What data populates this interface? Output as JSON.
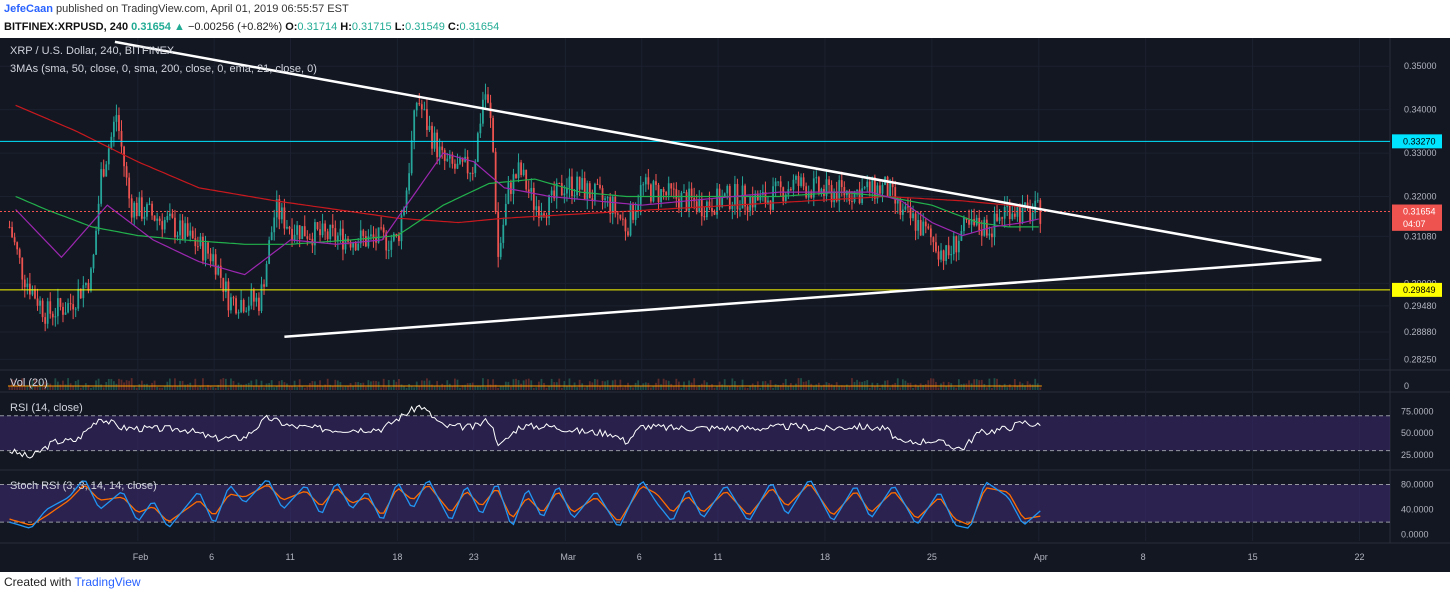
{
  "header": {
    "author": "JefeCaan",
    "published_text": "published on TradingView.com, April 01, 2019 06:55:57 EST",
    "symbol": "BITFINEX:XRPUSD, 240",
    "last": "0.31654",
    "change": "−0.00256 (+0.82%)",
    "o_label": "O:",
    "o_value": "0.31714",
    "h_label": "H:",
    "h_value": "0.31715",
    "l_label": "L:",
    "l_value": "0.31549",
    "c_label": "C:",
    "c_value": "0.31654"
  },
  "footer": {
    "created_with": "Created with",
    "brand": "TradingView"
  },
  "colors": {
    "background": "#131722",
    "grid": "#1c2130",
    "up": "#26a69a",
    "down": "#ef5350",
    "ma50": "#22b14c",
    "ma200": "#c8191e",
    "ema21": "#9c27b0",
    "trendline": "#ffffff",
    "resistance": "#00e5ff",
    "support": "#ffff00",
    "rsi_line": "#ffffff",
    "band": "#3c2a6e",
    "stoch_k": "#2196f3",
    "stoch_d": "#ff6d00"
  },
  "chart_data": {
    "type": "candlestick",
    "title": "XRP / U.S. Dollar, 240, BITFINEX",
    "indicator_label": "3MAs (sma, 50, close, 0, sma, 200, close, 0, ema, 21, close, 0)",
    "price_axis": {
      "ylim": [
        0.2805,
        0.3565
      ],
      "ticks": [
        "0.35000",
        "0.34000",
        "0.33000",
        "0.32000",
        "0.31080",
        "0.30000",
        "0.29480",
        "0.28880",
        "0.28250"
      ],
      "tick_values": [
        0.35,
        0.34,
        0.33,
        0.32,
        0.3108,
        0.3,
        0.2948,
        0.2888,
        0.2825
      ],
      "price_tags": [
        {
          "label": "0.33270",
          "value": 0.3327,
          "style": "resistance"
        },
        {
          "label": "0.31654",
          "value": 0.31654,
          "style": "last"
        },
        {
          "label": "04:07",
          "value": 0.3137,
          "style": "countdown"
        },
        {
          "label": "0.29849",
          "value": 0.29849,
          "style": "support"
        }
      ]
    },
    "x_axis": {
      "labels": [
        "Feb",
        "6",
        "11",
        "18",
        "23",
        "Mar",
        "6",
        "11",
        "18",
        "25",
        "Apr",
        "8",
        "15",
        "22"
      ],
      "label_days": [
        31,
        36,
        41,
        48,
        53,
        59,
        64,
        69,
        76,
        83,
        90,
        97,
        104,
        111
      ],
      "range_days": [
        22.5,
        113
      ],
      "last_day": 90.2
    },
    "horizontal_levels": [
      {
        "value": 0.3327,
        "name": "resistance"
      },
      {
        "value": 0.29849,
        "name": "support"
      },
      {
        "value": 0.31654,
        "name": "last price",
        "dashed": true
      }
    ],
    "trendlines": [
      {
        "from": [
          29.5,
          0.3556
        ],
        "to": [
          108.5,
          0.3054
        ]
      },
      {
        "from": [
          40.6,
          0.2877
        ],
        "to": [
          108.5,
          0.3054
        ]
      }
    ],
    "price_anchors": [
      [
        22.6,
        0.313
      ],
      [
        23.5,
        0.302
      ],
      [
        25,
        0.293
      ],
      [
        26.5,
        0.295
      ],
      [
        28,
        0.302
      ],
      [
        28.6,
        0.325
      ],
      [
        29.3,
        0.334
      ],
      [
        29.6,
        0.339
      ],
      [
        30.5,
        0.318
      ],
      [
        33,
        0.314
      ],
      [
        34.5,
        0.31
      ],
      [
        36,
        0.306
      ],
      [
        37,
        0.296
      ],
      [
        39,
        0.296
      ],
      [
        40,
        0.317
      ],
      [
        41,
        0.313
      ],
      [
        43,
        0.311
      ],
      [
        46,
        0.31
      ],
      [
        48,
        0.31
      ],
      [
        48.6,
        0.322
      ],
      [
        49.3,
        0.343
      ],
      [
        50,
        0.336
      ],
      [
        51,
        0.328
      ],
      [
        52,
        0.326
      ],
      [
        53,
        0.327
      ],
      [
        53.7,
        0.345
      ],
      [
        54.2,
        0.335
      ],
      [
        54.6,
        0.306
      ],
      [
        55.3,
        0.322
      ],
      [
        56,
        0.326
      ],
      [
        57,
        0.318
      ],
      [
        58,
        0.318
      ],
      [
        59,
        0.323
      ],
      [
        60,
        0.322
      ],
      [
        62,
        0.318
      ],
      [
        63,
        0.313
      ],
      [
        64,
        0.322
      ],
      [
        66,
        0.32
      ],
      [
        68,
        0.318
      ],
      [
        70,
        0.32
      ],
      [
        72,
        0.319
      ],
      [
        74,
        0.323
      ],
      [
        76,
        0.321
      ],
      [
        78,
        0.321
      ],
      [
        80,
        0.322
      ],
      [
        81,
        0.316
      ],
      [
        82,
        0.314
      ],
      [
        83,
        0.31
      ],
      [
        84,
        0.306
      ],
      [
        85,
        0.312
      ],
      [
        86,
        0.313
      ],
      [
        87,
        0.313
      ],
      [
        88,
        0.318
      ],
      [
        89,
        0.316
      ],
      [
        90.2,
        0.3165
      ]
    ],
    "ma50_anchors": [
      [
        23,
        0.32
      ],
      [
        25,
        0.317
      ],
      [
        28,
        0.313
      ],
      [
        31,
        0.311
      ],
      [
        34,
        0.31
      ],
      [
        38,
        0.309
      ],
      [
        41,
        0.309
      ],
      [
        45,
        0.31
      ],
      [
        48,
        0.311
      ],
      [
        51,
        0.318
      ],
      [
        54,
        0.323
      ],
      [
        57,
        0.324
      ],
      [
        60,
        0.321
      ],
      [
        63,
        0.32
      ],
      [
        66,
        0.32
      ],
      [
        70,
        0.32
      ],
      [
        73,
        0.32
      ],
      [
        77,
        0.321
      ],
      [
        80,
        0.32
      ],
      [
        83,
        0.318
      ],
      [
        86,
        0.314
      ],
      [
        88,
        0.313
      ],
      [
        90.2,
        0.313
      ]
    ],
    "ma200_anchors": [
      [
        23,
        0.341
      ],
      [
        27,
        0.335
      ],
      [
        31,
        0.328
      ],
      [
        35,
        0.322
      ],
      [
        40,
        0.319
      ],
      [
        44,
        0.317
      ],
      [
        48,
        0.315
      ],
      [
        52,
        0.314
      ],
      [
        55,
        0.315
      ],
      [
        60,
        0.316
      ],
      [
        65,
        0.317
      ],
      [
        70,
        0.318
      ],
      [
        75,
        0.319
      ],
      [
        80,
        0.32
      ],
      [
        85,
        0.319
      ],
      [
        88,
        0.318
      ],
      [
        90.2,
        0.317
      ]
    ],
    "ema21_anchors": [
      [
        23,
        0.317
      ],
      [
        26,
        0.306
      ],
      [
        29,
        0.318
      ],
      [
        32,
        0.31
      ],
      [
        35,
        0.305
      ],
      [
        38,
        0.302
      ],
      [
        41,
        0.31
      ],
      [
        44,
        0.309
      ],
      [
        47,
        0.31
      ],
      [
        49,
        0.32
      ],
      [
        51,
        0.33
      ],
      [
        53,
        0.328
      ],
      [
        55,
        0.322
      ],
      [
        58,
        0.32
      ],
      [
        61,
        0.319
      ],
      [
        64,
        0.318
      ],
      [
        67,
        0.319
      ],
      [
        70,
        0.32
      ],
      [
        73,
        0.321
      ],
      [
        76,
        0.321
      ],
      [
        79,
        0.321
      ],
      [
        81,
        0.319
      ],
      [
        83,
        0.314
      ],
      [
        85,
        0.311
      ],
      [
        87,
        0.313
      ],
      [
        89,
        0.314
      ],
      [
        90.2,
        0.315
      ]
    ],
    "volume": {
      "label": "Vol (20)",
      "tick": "0"
    },
    "rsi": {
      "label": "RSI (14, close)",
      "ylim": [
        10,
        95
      ],
      "ticks": [
        "75.0000",
        "50.0000",
        "25.0000"
      ],
      "tick_values": [
        75,
        50,
        25
      ],
      "band": [
        30,
        70
      ],
      "anchors": [
        [
          22.6,
          30
        ],
        [
          24,
          22
        ],
        [
          25.5,
          40
        ],
        [
          27,
          42
        ],
        [
          28.5,
          68
        ],
        [
          30,
          56
        ],
        [
          32,
          55
        ],
        [
          34,
          55
        ],
        [
          36,
          44
        ],
        [
          38,
          45
        ],
        [
          39.5,
          68
        ],
        [
          41,
          58
        ],
        [
          44,
          54
        ],
        [
          47,
          55
        ],
        [
          48.5,
          72
        ],
        [
          49.5,
          82
        ],
        [
          51,
          58
        ],
        [
          53,
          57
        ],
        [
          54,
          66
        ],
        [
          54.7,
          35
        ],
        [
          56,
          58
        ],
        [
          58,
          58
        ],
        [
          60,
          52
        ],
        [
          62,
          50
        ],
        [
          63,
          40
        ],
        [
          64,
          58
        ],
        [
          66,
          56
        ],
        [
          68,
          56
        ],
        [
          70,
          56
        ],
        [
          72,
          56
        ],
        [
          74,
          58
        ],
        [
          76,
          55
        ],
        [
          78,
          58
        ],
        [
          80,
          55
        ],
        [
          81,
          38
        ],
        [
          83,
          42
        ],
        [
          85,
          32
        ],
        [
          86,
          50
        ],
        [
          88,
          56
        ],
        [
          89,
          63
        ],
        [
          90.2,
          58
        ]
      ]
    },
    "stoch": {
      "label": "Stoch RSI (3, 3, 14, 14, close)",
      "ylim": [
        -10,
        100
      ],
      "ticks": [
        "80.0000",
        "40.0000",
        "0.0000"
      ],
      "tick_values": [
        80,
        40,
        0
      ],
      "band": [
        20,
        80
      ],
      "k_anchors": [
        [
          22.6,
          20
        ],
        [
          24,
          10
        ],
        [
          25,
          40
        ],
        [
          26.5,
          60
        ],
        [
          27.5,
          90
        ],
        [
          28.5,
          40
        ],
        [
          30,
          70
        ],
        [
          31,
          20
        ],
        [
          32,
          55
        ],
        [
          33,
          10
        ],
        [
          35,
          70
        ],
        [
          36,
          15
        ],
        [
          37,
          80
        ],
        [
          38,
          50
        ],
        [
          39.5,
          90
        ],
        [
          40.5,
          40
        ],
        [
          42,
          80
        ],
        [
          43,
          30
        ],
        [
          44,
          85
        ],
        [
          45,
          40
        ],
        [
          46,
          70
        ],
        [
          47,
          20
        ],
        [
          48,
          85
        ],
        [
          49,
          40
        ],
        [
          50,
          90
        ],
        [
          51.5,
          20
        ],
        [
          52.5,
          80
        ],
        [
          53.5,
          30
        ],
        [
          54.5,
          85
        ],
        [
          55.5,
          10
        ],
        [
          56.5,
          75
        ],
        [
          57.5,
          25
        ],
        [
          58.5,
          80
        ],
        [
          59.5,
          25
        ],
        [
          61,
          70
        ],
        [
          62.5,
          10
        ],
        [
          64,
          88
        ],
        [
          65,
          50
        ],
        [
          66,
          20
        ],
        [
          67,
          75
        ],
        [
          68,
          25
        ],
        [
          69.5,
          80
        ],
        [
          71,
          20
        ],
        [
          72.5,
          85
        ],
        [
          73.5,
          30
        ],
        [
          75,
          90
        ],
        [
          76.5,
          20
        ],
        [
          78,
          80
        ],
        [
          79,
          25
        ],
        [
          80.5,
          80
        ],
        [
          82,
          15
        ],
        [
          83.5,
          70
        ],
        [
          84.5,
          15
        ],
        [
          85.5,
          10
        ],
        [
          86.5,
          85
        ],
        [
          88,
          60
        ],
        [
          89,
          15
        ],
        [
          90.2,
          40
        ]
      ],
      "d_anchors": [
        [
          22.6,
          25
        ],
        [
          24,
          15
        ],
        [
          25,
          30
        ],
        [
          26.5,
          55
        ],
        [
          27.5,
          80
        ],
        [
          28.5,
          55
        ],
        [
          30,
          60
        ],
        [
          31,
          35
        ],
        [
          32,
          45
        ],
        [
          33,
          20
        ],
        [
          35,
          55
        ],
        [
          36,
          30
        ],
        [
          37,
          65
        ],
        [
          38,
          60
        ],
        [
          39.5,
          80
        ],
        [
          40.5,
          55
        ],
        [
          42,
          70
        ],
        [
          43,
          45
        ],
        [
          44,
          75
        ],
        [
          45,
          50
        ],
        [
          46,
          60
        ],
        [
          47,
          30
        ],
        [
          48,
          75
        ],
        [
          49,
          55
        ],
        [
          50,
          80
        ],
        [
          51.5,
          35
        ],
        [
          52.5,
          70
        ],
        [
          53.5,
          45
        ],
        [
          54.5,
          75
        ],
        [
          55.5,
          25
        ],
        [
          56.5,
          60
        ],
        [
          57.5,
          35
        ],
        [
          58.5,
          70
        ],
        [
          59.5,
          35
        ],
        [
          61,
          60
        ],
        [
          62.5,
          20
        ],
        [
          64,
          78
        ],
        [
          65,
          65
        ],
        [
          66,
          35
        ],
        [
          67,
          62
        ],
        [
          68,
          35
        ],
        [
          69.5,
          70
        ],
        [
          71,
          30
        ],
        [
          72.5,
          75
        ],
        [
          73.5,
          45
        ],
        [
          75,
          82
        ],
        [
          76.5,
          30
        ],
        [
          78,
          70
        ],
        [
          79,
          35
        ],
        [
          80.5,
          70
        ],
        [
          82,
          25
        ],
        [
          83.5,
          60
        ],
        [
          84.5,
          25
        ],
        [
          85.5,
          15
        ],
        [
          86.5,
          75
        ],
        [
          88,
          68
        ],
        [
          89,
          25
        ],
        [
          90.2,
          30
        ]
      ]
    }
  }
}
